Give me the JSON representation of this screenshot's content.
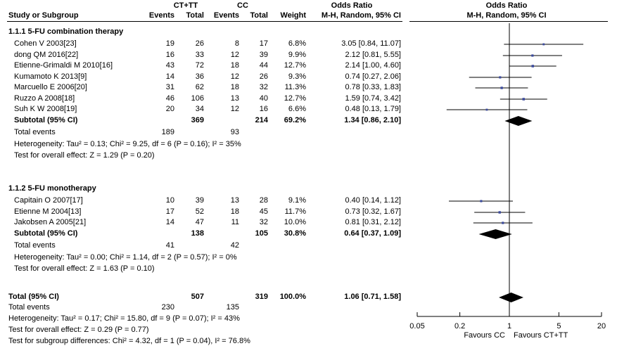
{
  "headers": {
    "group1": "CT+TT",
    "group2": "CC",
    "odds_ratio": "Odds Ratio",
    "odds_ratio_plot": "Odds Ratio",
    "study": "Study or Subgroup",
    "events1": "Events",
    "total1": "Total",
    "events2": "Events",
    "total2": "Total",
    "weight": "Weight",
    "method": "M-H, Random, 95% CI",
    "method_plot": "M-H, Random, 95% CI"
  },
  "subgroups": [
    {
      "title": "1.1.1 5-FU combination therapy",
      "studies": [
        {
          "name": "Cohen V 2003[23]",
          "e1": "19",
          "t1": "26",
          "e2": "8",
          "t2": "17",
          "weight": "6.8%",
          "ci": "3.05 [0.84, 11.07]"
        },
        {
          "name": "dong QM 2016[22]",
          "e1": "16",
          "t1": "33",
          "e2": "12",
          "t2": "39",
          "weight": "9.9%",
          "ci": "2.12 [0.81, 5.55]"
        },
        {
          "name": "Etienne-Grimaldi M 2010[16]",
          "e1": "43",
          "t1": "72",
          "e2": "18",
          "t2": "44",
          "weight": "12.7%",
          "ci": "2.14 [1.00, 4.60]"
        },
        {
          "name": "Kumamoto K 2013[9]",
          "e1": "14",
          "t1": "36",
          "e2": "12",
          "t2": "26",
          "weight": "9.3%",
          "ci": "0.74 [0.27, 2.06]"
        },
        {
          "name": "Marcuello E 2006[20]",
          "e1": "31",
          "t1": "62",
          "e2": "18",
          "t2": "32",
          "weight": "11.3%",
          "ci": "0.78 [0.33, 1.83]"
        },
        {
          "name": "Ruzzo A 2008[18]",
          "e1": "46",
          "t1": "106",
          "e2": "13",
          "t2": "40",
          "weight": "12.7%",
          "ci": "1.59 [0.74, 3.42]"
        },
        {
          "name": "Suh K W 2008[19]",
          "e1": "20",
          "t1": "34",
          "e2": "12",
          "t2": "16",
          "weight": "6.6%",
          "ci": "0.48 [0.13, 1.79]"
        }
      ],
      "subtotal": {
        "label": "Subtotal (95% CI)",
        "t1": "369",
        "t2": "214",
        "weight": "69.2%",
        "ci": "1.34 [0.86, 2.10]"
      },
      "events": {
        "label": "Total events",
        "e1": "189",
        "e2": "93"
      },
      "heterogeneity": "Heterogeneity: Tau² = 0.13; Chi² = 9.25, df = 6 (P = 0.16); I² = 35%",
      "overall": "Test for overall effect: Z = 1.29 (P = 0.20)"
    },
    {
      "title": "1.1.2 5-FU monotherapy",
      "studies": [
        {
          "name": "Capitain O 2007[17]",
          "e1": "10",
          "t1": "39",
          "e2": "13",
          "t2": "28",
          "weight": "9.1%",
          "ci": "0.40 [0.14, 1.12]"
        },
        {
          "name": "Etienne M 2004[13]",
          "e1": "17",
          "t1": "52",
          "e2": "18",
          "t2": "45",
          "weight": "11.7%",
          "ci": "0.73 [0.32, 1.67]"
        },
        {
          "name": "Jakobsen A 2005[21]",
          "e1": "14",
          "t1": "47",
          "e2": "11",
          "t2": "32",
          "weight": "10.0%",
          "ci": "0.81 [0.31, 2.12]"
        }
      ],
      "subtotal": {
        "label": "Subtotal (95% CI)",
        "t1": "138",
        "t2": "105",
        "weight": "30.8%",
        "ci": "0.64 [0.37, 1.09]"
      },
      "events": {
        "label": "Total events",
        "e1": "41",
        "e2": "42"
      },
      "heterogeneity": "Heterogeneity: Tau² = 0.00; Chi² = 1.14, df = 2 (P = 0.57); I² = 0%",
      "overall": "Test for overall effect: Z = 1.63 (P = 0.10)"
    }
  ],
  "total": {
    "label": "Total (95% CI)",
    "t1": "507",
    "t2": "319",
    "weight": "100.0%",
    "ci": "1.06 [0.71, 1.58]"
  },
  "total_events": {
    "label": "Total events",
    "e1": "230",
    "e2": "135"
  },
  "total_heterogeneity": "Heterogeneity: Tau² = 0.17; Chi² = 15.80, df = 9 (P = 0.07); I² = 43%",
  "total_overall": "Test for overall effect: Z = 0.29 (P = 0.77)",
  "subgroup_diff": "Test for subgroup differences: Chi² = 4.32, df = 1 (P = 0.04), I² = 76.8%",
  "axis": {
    "ticks": [
      "0.05",
      "0.2",
      "1",
      "5",
      "20"
    ],
    "favours_left": "Favours CC",
    "favours_right": "Favours CT+TT"
  },
  "colors": {
    "study_marker": "#3b4a9c",
    "diamond": "#000000"
  },
  "chart_data": {
    "type": "forest",
    "scale": "log",
    "xlim": [
      0.05,
      20
    ],
    "x_ticks": [
      0.05,
      0.2,
      1,
      5,
      20
    ],
    "reference_line": 1,
    "studies": [
      {
        "name": "Cohen V 2003[23]",
        "or": 3.05,
        "lo": 0.84,
        "hi": 11.07,
        "weight": 6.8
      },
      {
        "name": "dong QM 2016[22]",
        "or": 2.12,
        "lo": 0.81,
        "hi": 5.55,
        "weight": 9.9
      },
      {
        "name": "Etienne-Grimaldi M 2010[16]",
        "or": 2.14,
        "lo": 1.0,
        "hi": 4.6,
        "weight": 12.7
      },
      {
        "name": "Kumamoto K 2013[9]",
        "or": 0.74,
        "lo": 0.27,
        "hi": 2.06,
        "weight": 9.3
      },
      {
        "name": "Marcuello E 2006[20]",
        "or": 0.78,
        "lo": 0.33,
        "hi": 1.83,
        "weight": 11.3
      },
      {
        "name": "Ruzzo A 2008[18]",
        "or": 1.59,
        "lo": 0.74,
        "hi": 3.42,
        "weight": 12.7
      },
      {
        "name": "Suh K W 2008[19]",
        "or": 0.48,
        "lo": 0.13,
        "hi": 1.79,
        "weight": 6.6
      },
      {
        "name": "Capitain O 2007[17]",
        "or": 0.4,
        "lo": 0.14,
        "hi": 1.12,
        "weight": 9.1
      },
      {
        "name": "Etienne M 2004[13]",
        "or": 0.73,
        "lo": 0.32,
        "hi": 1.67,
        "weight": 11.7
      },
      {
        "name": "Jakobsen A 2005[21]",
        "or": 0.81,
        "lo": 0.31,
        "hi": 2.12,
        "weight": 10.0
      }
    ],
    "pooled": [
      {
        "name": "Subtotal (95% CI) 1.1.1",
        "or": 1.34,
        "lo": 0.86,
        "hi": 2.1
      },
      {
        "name": "Subtotal (95% CI) 1.1.2",
        "or": 0.64,
        "lo": 0.37,
        "hi": 1.09
      },
      {
        "name": "Total (95% CI)",
        "or": 1.06,
        "lo": 0.71,
        "hi": 1.58
      }
    ]
  }
}
